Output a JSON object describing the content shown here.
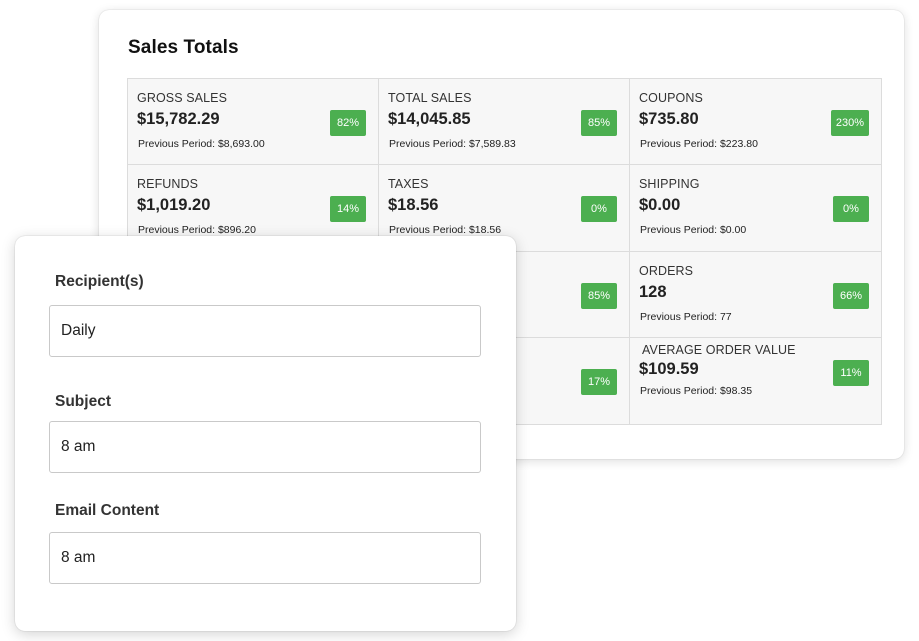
{
  "sales": {
    "title": "Sales Totals",
    "metrics": [
      {
        "label": "GROSS SALES",
        "value": "$15,782.29",
        "badge": "82%",
        "previous": "Previous Period: $8,693.00"
      },
      {
        "label": "TOTAL SALES",
        "value": "$14,045.85",
        "badge": "85%",
        "previous": "Previous Period: $7,589.83"
      },
      {
        "label": "COUPONS",
        "value": "$735.80",
        "badge": "230%",
        "previous": "Previous Period: $223.80"
      },
      {
        "label": "REFUNDS",
        "value": "$1,019.20",
        "badge": "14%",
        "previous": "Previous Period: $896.20"
      },
      {
        "label": "TAXES",
        "value": "$18.56",
        "badge": "0%",
        "previous": "Previous Period: $18.56"
      },
      {
        "label": "SHIPPING",
        "value": "$0.00",
        "badge": "0%",
        "previous": "Previous Period: $0.00"
      },
      {
        "label": "",
        "value": "",
        "badge": "",
        "previous": ""
      },
      {
        "label": "",
        "value": "",
        "badge": "85%",
        "previous": ""
      },
      {
        "label": "ORDERS",
        "value": "128",
        "badge": "66%",
        "previous": "Previous Period: 77"
      },
      {
        "label": "",
        "value": "",
        "badge": "",
        "previous": ""
      },
      {
        "label": "",
        "value": "",
        "badge": "17%",
        "previous": ""
      },
      {
        "label": "AVERAGE ORDER VALUE",
        "value": "$109.59",
        "badge": "11%",
        "previous": "Previous Period: $98.35"
      }
    ],
    "badge_color": "#4caf50"
  },
  "email_form": {
    "recipients": {
      "label": "Recipient(s)",
      "value": "Daily"
    },
    "subject": {
      "label": "Subject",
      "value": "8 am"
    },
    "content": {
      "label": "Email Content",
      "value": "8 am"
    }
  }
}
